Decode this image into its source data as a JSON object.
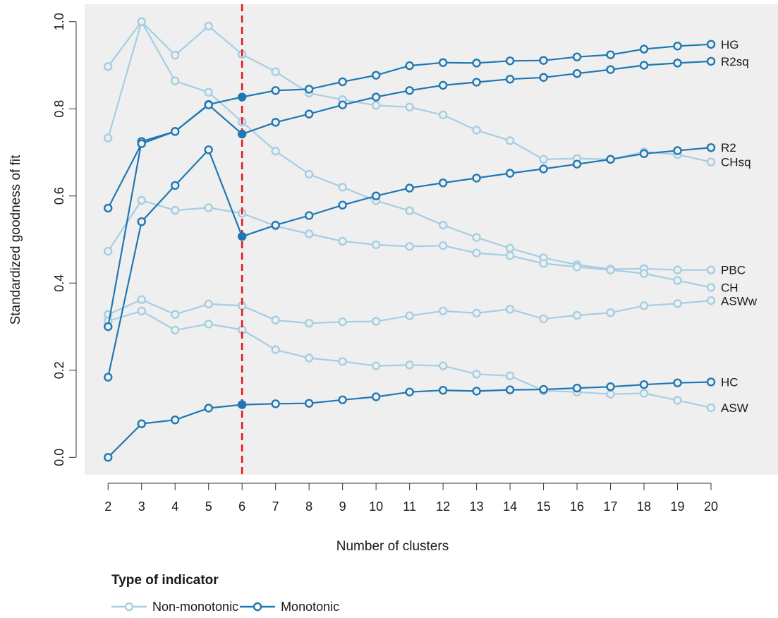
{
  "chart_data": {
    "type": "line",
    "title": "",
    "xlabel": "Number of clusters",
    "ylabel": "Standardized goodness of fit",
    "x": [
      2,
      3,
      4,
      5,
      6,
      7,
      8,
      9,
      10,
      11,
      12,
      13,
      14,
      15,
      16,
      17,
      18,
      19,
      20
    ],
    "x_ticks": [
      2,
      3,
      4,
      5,
      6,
      7,
      8,
      9,
      10,
      11,
      12,
      13,
      14,
      15,
      16,
      17,
      18,
      19,
      20
    ],
    "y_ticks": [
      0.0,
      0.2,
      0.4,
      0.6,
      0.8,
      1.0
    ],
    "y_tick_labels": [
      "0.0",
      "0.2",
      "0.4",
      "0.6",
      "0.8",
      "1.0"
    ],
    "xlim": [
      1.3,
      22.0
    ],
    "ylim": [
      -0.04,
      1.04
    ],
    "grid": false,
    "background": "#efefef",
    "highlight_x": 6,
    "highlight_color": "#e31a1c",
    "series": [
      {
        "name": "HG",
        "type": "Monotonic",
        "values": [
          0.3,
          0.725,
          0.748,
          0.81,
          0.827,
          0.842,
          0.845,
          0.862,
          0.877,
          0.899,
          0.906,
          0.905,
          0.91,
          0.911,
          0.919,
          0.924,
          0.937,
          0.944,
          0.948
        ]
      },
      {
        "name": "R2sq",
        "type": "Monotonic",
        "values": [
          0.572,
          0.72,
          0.748,
          0.809,
          0.742,
          0.769,
          0.788,
          0.809,
          0.827,
          0.842,
          0.854,
          0.861,
          0.868,
          0.872,
          0.881,
          0.89,
          0.9,
          0.905,
          0.909
        ]
      },
      {
        "name": "R2",
        "type": "Monotonic",
        "values": [
          0.184,
          0.541,
          0.624,
          0.706,
          0.507,
          0.533,
          0.555,
          0.579,
          0.6,
          0.618,
          0.63,
          0.641,
          0.652,
          0.662,
          0.673,
          0.684,
          0.697,
          0.704,
          0.711
        ]
      },
      {
        "name": "HC",
        "type": "Monotonic",
        "values": [
          0.0,
          0.077,
          0.086,
          0.113,
          0.121,
          0.123,
          0.124,
          0.132,
          0.139,
          0.15,
          0.154,
          0.152,
          0.155,
          0.156,
          0.159,
          0.162,
          0.167,
          0.171,
          0.173
        ]
      },
      {
        "name": "CHsq",
        "type": "Non-monotonic",
        "values": [
          0.897,
          1.0,
          0.923,
          0.99,
          0.925,
          0.885,
          0.836,
          0.821,
          0.808,
          0.804,
          0.786,
          0.751,
          0.727,
          0.684,
          0.686,
          0.684,
          0.701,
          0.695,
          0.678
        ]
      },
      {
        "name": "PBC",
        "type": "Non-monotonic",
        "values": [
          0.733,
          1.0,
          0.864,
          0.838,
          0.77,
          0.703,
          0.65,
          0.62,
          0.589,
          0.566,
          0.533,
          0.505,
          0.48,
          0.458,
          0.442,
          0.432,
          0.433,
          0.43,
          0.43
        ]
      },
      {
        "name": "CH",
        "type": "Non-monotonic",
        "values": [
          0.473,
          0.59,
          0.567,
          0.573,
          0.56,
          0.531,
          0.513,
          0.496,
          0.488,
          0.484,
          0.486,
          0.469,
          0.463,
          0.445,
          0.437,
          0.43,
          0.422,
          0.406,
          0.39
        ]
      },
      {
        "name": "ASWw",
        "type": "Non-monotonic",
        "values": [
          0.328,
          0.362,
          0.328,
          0.352,
          0.348,
          0.315,
          0.308,
          0.311,
          0.312,
          0.325,
          0.336,
          0.331,
          0.34,
          0.318,
          0.326,
          0.332,
          0.348,
          0.353,
          0.36
        ]
      },
      {
        "name": "ASW",
        "type": "Non-monotonic",
        "values": [
          0.313,
          0.336,
          0.292,
          0.306,
          0.293,
          0.247,
          0.228,
          0.22,
          0.21,
          0.212,
          0.21,
          0.191,
          0.187,
          0.153,
          0.15,
          0.145,
          0.147,
          0.131,
          0.114
        ]
      }
    ],
    "legend": {
      "title": "Type of indicator",
      "placement": "bottom-left",
      "entries": [
        {
          "label": "Non-monotonic",
          "color": "#a6cee3"
        },
        {
          "label": "Monotonic",
          "color": "#1f78b4"
        }
      ]
    },
    "colors": {
      "Non-monotonic": "#a6cee3",
      "Monotonic": "#1f78b4"
    }
  }
}
